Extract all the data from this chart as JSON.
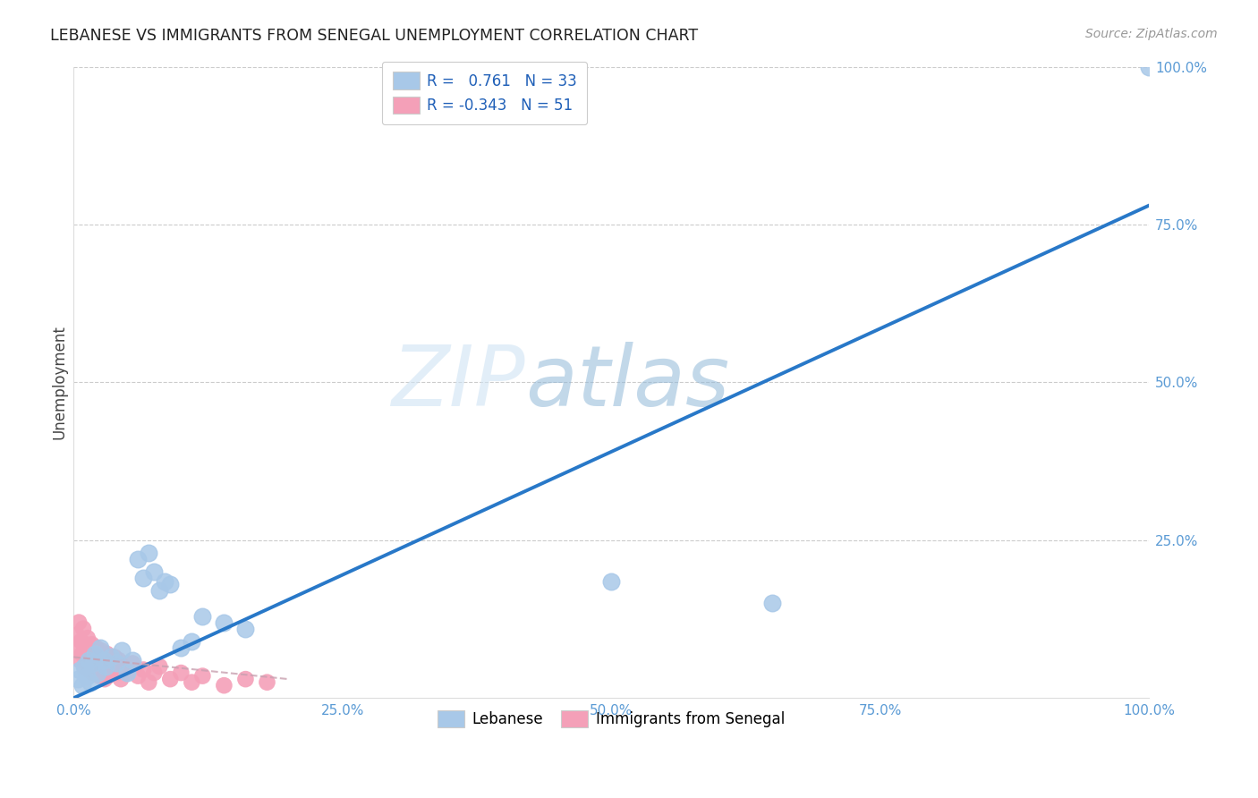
{
  "title": "LEBANESE VS IMMIGRANTS FROM SENEGAL UNEMPLOYMENT CORRELATION CHART",
  "source": "Source: ZipAtlas.com",
  "ylabel": "Unemployment",
  "blue_color": "#a8c8e8",
  "pink_color": "#f4a0b8",
  "line_color": "#2878c8",
  "pink_line_color": "#c8a0b0",
  "watermark_zip": "ZIP",
  "watermark_atlas": "atlas",
  "blue_scatter_x": [
    0.004,
    0.006,
    0.008,
    0.01,
    0.012,
    0.014,
    0.016,
    0.018,
    0.02,
    0.022,
    0.025,
    0.028,
    0.03,
    0.035,
    0.04,
    0.045,
    0.05,
    0.055,
    0.06,
    0.065,
    0.07,
    0.075,
    0.08,
    0.085,
    0.09,
    0.1,
    0.11,
    0.12,
    0.14,
    0.16,
    0.5,
    0.65,
    1.0
  ],
  "blue_scatter_y": [
    0.03,
    0.045,
    0.02,
    0.05,
    0.035,
    0.06,
    0.025,
    0.055,
    0.07,
    0.04,
    0.08,
    0.06,
    0.05,
    0.065,
    0.055,
    0.075,
    0.04,
    0.06,
    0.22,
    0.19,
    0.23,
    0.2,
    0.17,
    0.185,
    0.18,
    0.08,
    0.09,
    0.13,
    0.12,
    0.11,
    0.185,
    0.15,
    1.0
  ],
  "pink_scatter_x": [
    0.003,
    0.004,
    0.005,
    0.006,
    0.007,
    0.008,
    0.009,
    0.01,
    0.011,
    0.012,
    0.013,
    0.014,
    0.015,
    0.016,
    0.017,
    0.018,
    0.019,
    0.02,
    0.021,
    0.022,
    0.023,
    0.024,
    0.025,
    0.026,
    0.027,
    0.028,
    0.029,
    0.03,
    0.031,
    0.032,
    0.034,
    0.036,
    0.038,
    0.04,
    0.042,
    0.044,
    0.046,
    0.05,
    0.055,
    0.06,
    0.065,
    0.07,
    0.075,
    0.08,
    0.09,
    0.1,
    0.11,
    0.12,
    0.14,
    0.16,
    0.18
  ],
  "pink_scatter_y": [
    0.1,
    0.08,
    0.12,
    0.06,
    0.09,
    0.07,
    0.11,
    0.05,
    0.085,
    0.065,
    0.095,
    0.045,
    0.075,
    0.055,
    0.085,
    0.04,
    0.07,
    0.06,
    0.08,
    0.045,
    0.065,
    0.035,
    0.055,
    0.075,
    0.04,
    0.06,
    0.03,
    0.05,
    0.07,
    0.035,
    0.055,
    0.045,
    0.065,
    0.04,
    0.06,
    0.03,
    0.05,
    0.04,
    0.055,
    0.035,
    0.045,
    0.025,
    0.04,
    0.05,
    0.03,
    0.04,
    0.025,
    0.035,
    0.02,
    0.03,
    0.025
  ],
  "blue_line_x": [
    0.0,
    1.0
  ],
  "blue_line_y": [
    0.0,
    0.78
  ],
  "pink_line_x": [
    0.0,
    0.2
  ],
  "pink_line_y": [
    0.065,
    0.03
  ],
  "xtick_vals": [
    0.0,
    0.25,
    0.5,
    0.75,
    1.0
  ],
  "xtick_labels": [
    "0.0%",
    "25.0%",
    "50.0%",
    "75.0%",
    "100.0%"
  ],
  "ytick_vals": [
    0.0,
    0.25,
    0.5,
    0.75,
    1.0
  ],
  "ytick_labels": [
    "",
    "25.0%",
    "50.0%",
    "75.0%",
    "100.0%"
  ],
  "hgrid_vals": [
    0.25,
    0.5,
    0.75,
    1.0
  ],
  "legend1_labels": [
    "R =   0.761   N = 33",
    "R = -0.343   N = 51"
  ],
  "legend2_labels": [
    "Lebanese",
    "Immigrants from Senegal"
  ],
  "tick_color": "#5b9bd5",
  "grid_color": "#cccccc"
}
